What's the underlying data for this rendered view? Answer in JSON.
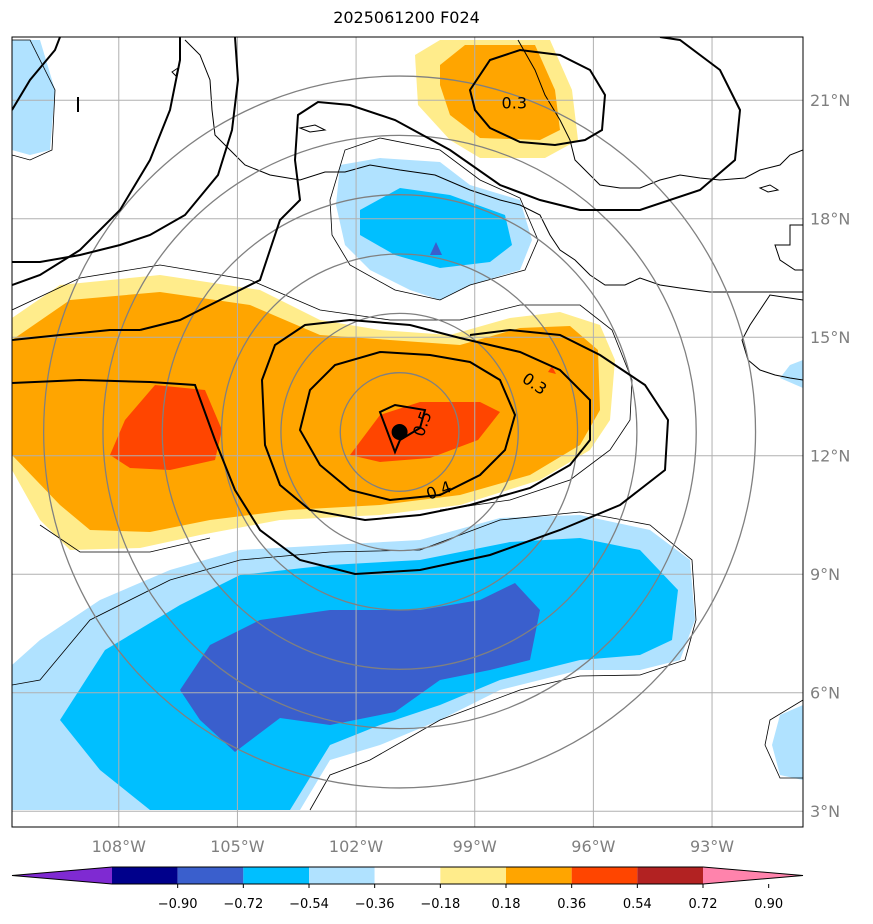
{
  "title": "2025061200 F024",
  "map": {
    "lon_range": [
      -110.7,
      -90.7
    ],
    "lat_range": [
      2.6,
      22.6
    ],
    "lon_ticks": [
      {
        "value": -108,
        "label": "108°W"
      },
      {
        "value": -105,
        "label": "105°W"
      },
      {
        "value": -102,
        "label": "102°W"
      },
      {
        "value": -99,
        "label": "99°W"
      },
      {
        "value": -96,
        "label": "96°W"
      },
      {
        "value": -93,
        "label": "93°W"
      }
    ],
    "lat_ticks": [
      {
        "value": 3,
        "label": "3°N"
      },
      {
        "value": 6,
        "label": "6°N"
      },
      {
        "value": 9,
        "label": "9°N"
      },
      {
        "value": 12,
        "label": "12°N"
      },
      {
        "value": 15,
        "label": "15°N"
      },
      {
        "value": 18,
        "label": "18°N"
      },
      {
        "value": 21,
        "label": "21°N"
      }
    ],
    "storm_center": {
      "lon": -100.9,
      "lat": 12.6
    },
    "range_rings_deg": [
      1.5,
      3,
      4.5,
      6,
      7.5,
      9
    ],
    "contour_labels": [
      {
        "text": "0.3",
        "lon": -98.0,
        "lat": 20.9,
        "rotate": 0
      },
      {
        "text": "0.3",
        "lon": -97.5,
        "lat": 13.8,
        "rotate": 35
      },
      {
        "text": "0.5",
        "lon": -100.3,
        "lat": 12.8,
        "rotate": -70
      },
      {
        "text": "0.4",
        "lon": -99.9,
        "lat": 11.1,
        "rotate": -20
      }
    ]
  },
  "colorbar": {
    "ticks": [
      "−0.90",
      "−0.72",
      "−0.54",
      "−0.36",
      "−0.18",
      "0.18",
      "0.36",
      "0.54",
      "0.72",
      "0.90"
    ],
    "colors": [
      "#7f2ad2",
      "#00008b",
      "#3a5fcd",
      "#00bfff",
      "#b0e2ff",
      "#ffffff",
      "#ffec8b",
      "#ffa500",
      "#ff4500",
      "#b22222",
      "#ff83ac"
    ]
  }
}
